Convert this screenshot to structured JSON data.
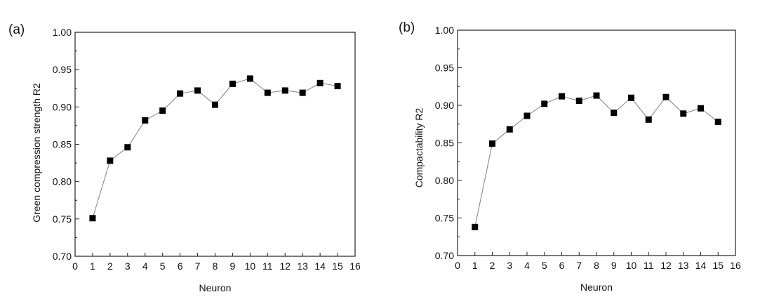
{
  "chart_data": [
    {
      "type": "line",
      "panel_label": "(a)",
      "xlabel": "Neuron",
      "ylabel": "Green compression strength R2",
      "xlim": [
        0,
        16
      ],
      "ylim": [
        0.7,
        1.0
      ],
      "xticks": [
        "0",
        "1",
        "2",
        "3",
        "4",
        "5",
        "6",
        "7",
        "8",
        "9",
        "10",
        "11",
        "12",
        "13",
        "14",
        "15",
        "16"
      ],
      "yticks": [
        "0.70",
        "0.75",
        "0.80",
        "0.85",
        "0.90",
        "0.95",
        "1.00"
      ],
      "grid": false,
      "marker": "square",
      "color": "#000000",
      "line_color": "#808080",
      "x": [
        1,
        2,
        3,
        4,
        5,
        6,
        7,
        8,
        9,
        10,
        11,
        12,
        13,
        14,
        15
      ],
      "y": [
        0.751,
        0.828,
        0.846,
        0.882,
        0.895,
        0.918,
        0.922,
        0.903,
        0.931,
        0.938,
        0.919,
        0.922,
        0.919,
        0.932,
        0.928
      ]
    },
    {
      "type": "line",
      "panel_label": "(b)",
      "xlabel": "Neuron",
      "ylabel": "Compactability R2",
      "xlim": [
        0,
        16
      ],
      "ylim": [
        0.7,
        1.0
      ],
      "xticks": [
        "0",
        "1",
        "2",
        "3",
        "4",
        "5",
        "6",
        "7",
        "8",
        "9",
        "10",
        "11",
        "12",
        "13",
        "14",
        "15",
        "16"
      ],
      "yticks": [
        "0.70",
        "0.75",
        "0.80",
        "0.85",
        "0.90",
        "0.95",
        "1.00"
      ],
      "grid": false,
      "marker": "square",
      "color": "#000000",
      "line_color": "#808080",
      "x": [
        1,
        2,
        3,
        4,
        5,
        6,
        7,
        8,
        9,
        10,
        11,
        12,
        13,
        14,
        15
      ],
      "y": [
        0.738,
        0.849,
        0.868,
        0.886,
        0.902,
        0.912,
        0.906,
        0.913,
        0.89,
        0.91,
        0.881,
        0.911,
        0.889,
        0.896,
        0.878
      ]
    }
  ]
}
